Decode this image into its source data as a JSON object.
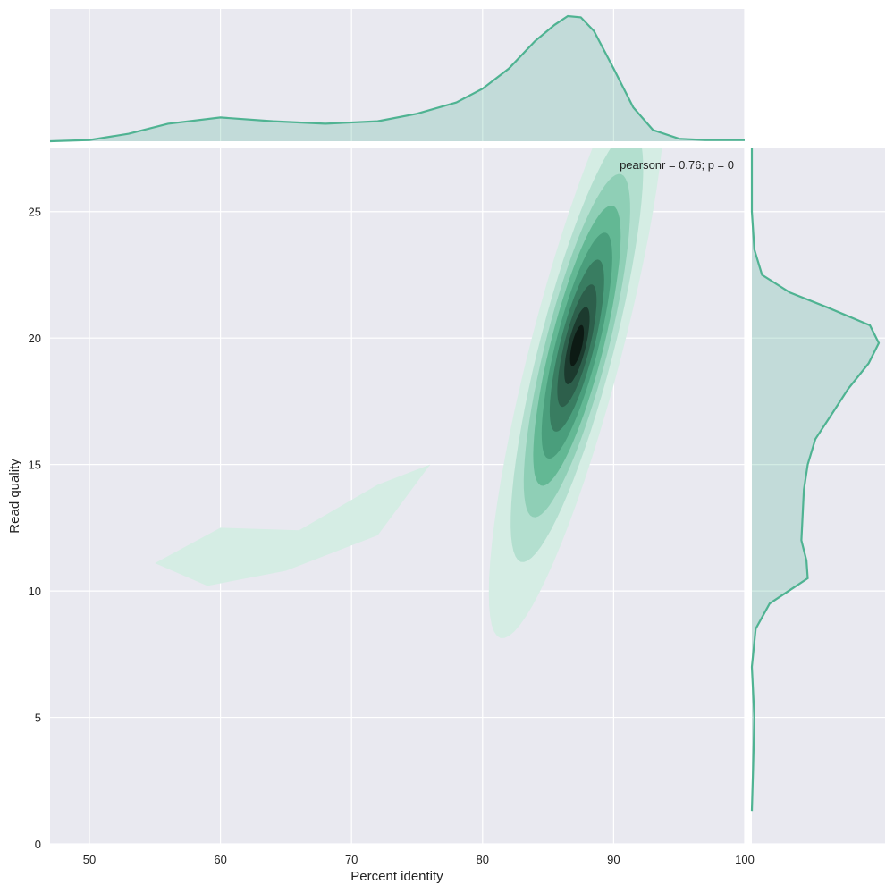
{
  "chart_data": {
    "type": "kde_joint",
    "xlabel": "Percent identity",
    "ylabel": "Read quality",
    "xlim": [
      47,
      100
    ],
    "ylim": [
      0,
      27.5
    ],
    "x_ticks": [
      50,
      60,
      70,
      80,
      90,
      100
    ],
    "y_ticks": [
      0,
      5,
      10,
      15,
      20,
      25
    ],
    "annotation": "pearsonr = 0.76; p = 0",
    "grid": true,
    "background": "#e9e9f0",
    "grid_color": "#ffffff",
    "accent_color": "#4fb392",
    "contour_levels": {
      "colors": [
        "#d5ede4",
        "#b3dfcf",
        "#8fcfb6",
        "#63b894",
        "#4a9e7c",
        "#397d61",
        "#2d5f4b",
        "#1c3a2e",
        "#0d1a14"
      ],
      "center": [
        87.2,
        19.7
      ],
      "angle_deg": 62,
      "semi_major": [
        13.0,
        9.6,
        7.6,
        6.2,
        5.0,
        3.8,
        2.7,
        1.7,
        0.9
      ],
      "semi_minor": [
        3.2,
        2.6,
        2.2,
        1.85,
        1.5,
        1.2,
        0.9,
        0.62,
        0.36
      ]
    },
    "contour_tail": {
      "x": [
        55.0,
        60.0,
        66.0,
        72.0,
        76.0,
        72.0,
        65.0,
        59.0,
        55.0
      ],
      "y": [
        11.1,
        12.5,
        12.4,
        14.2,
        15.0,
        12.2,
        10.8,
        10.2,
        11.1
      ]
    },
    "marginal_x": {
      "x": [
        47,
        50,
        53,
        56,
        60,
        64,
        68,
        72,
        75,
        78,
        80,
        82,
        84,
        85.5,
        86.5,
        87.5,
        88.5,
        90,
        91.5,
        93,
        95,
        97,
        100
      ],
      "density": [
        0.0,
        0.01,
        0.06,
        0.14,
        0.19,
        0.16,
        0.14,
        0.16,
        0.22,
        0.31,
        0.42,
        0.58,
        0.8,
        0.93,
        1.0,
        0.99,
        0.88,
        0.58,
        0.27,
        0.09,
        0.02,
        0.01,
        0.01
      ]
    },
    "marginal_y": {
      "y": [
        1.3,
        3.0,
        5.0,
        7.0,
        8.5,
        9.5,
        10.5,
        11.2,
        12.0,
        13.0,
        14.0,
        15.0,
        16.0,
        17.0,
        18.0,
        19.0,
        19.8,
        20.5,
        21.2,
        21.8,
        22.5,
        23.5,
        25.0,
        27.5
      ],
      "density": [
        0.0,
        0.01,
        0.02,
        0.0,
        0.03,
        0.14,
        0.44,
        0.43,
        0.39,
        0.4,
        0.41,
        0.44,
        0.5,
        0.63,
        0.76,
        0.92,
        1.0,
        0.93,
        0.6,
        0.3,
        0.08,
        0.02,
        0.0,
        0.0
      ]
    }
  }
}
